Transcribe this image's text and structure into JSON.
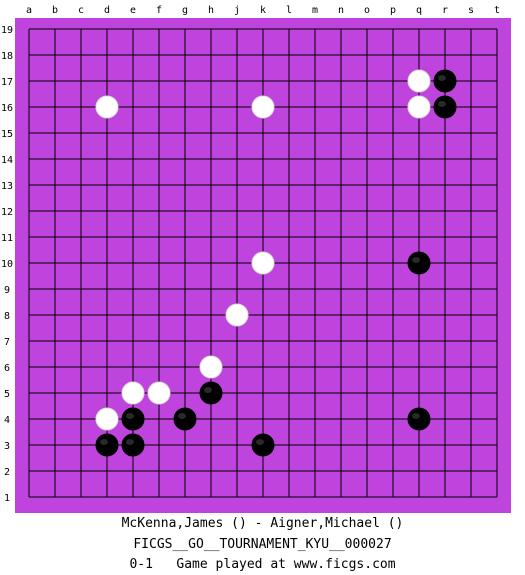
{
  "board": {
    "size": 19,
    "columns": [
      "a",
      "b",
      "c",
      "d",
      "e",
      "f",
      "g",
      "h",
      "j",
      "k",
      "l",
      "m",
      "n",
      "o",
      "p",
      "q",
      "r",
      "s",
      "t"
    ],
    "board_color": "#bf44dd",
    "stones": [
      {
        "color": "white",
        "point": "q17"
      },
      {
        "color": "black",
        "point": "r17"
      },
      {
        "color": "white",
        "point": "d16"
      },
      {
        "color": "white",
        "point": "k16"
      },
      {
        "color": "white",
        "point": "q16"
      },
      {
        "color": "black",
        "point": "r16"
      },
      {
        "color": "white",
        "point": "k10"
      },
      {
        "color": "black",
        "point": "q10"
      },
      {
        "color": "white",
        "point": "j8"
      },
      {
        "color": "white",
        "point": "h6"
      },
      {
        "color": "white",
        "point": "e5"
      },
      {
        "color": "white",
        "point": "f5"
      },
      {
        "color": "black",
        "point": "h5"
      },
      {
        "color": "white",
        "point": "d4"
      },
      {
        "color": "black",
        "point": "e4"
      },
      {
        "color": "black",
        "point": "g4"
      },
      {
        "color": "black",
        "point": "q4"
      },
      {
        "color": "black",
        "point": "d3"
      },
      {
        "color": "black",
        "point": "e3"
      },
      {
        "color": "black",
        "point": "k3"
      }
    ]
  },
  "game": {
    "players": "McKenna,James () - Aigner,Michael ()",
    "event": "FICGS__GO__TOURNAMENT_KYU__000027",
    "result": "0-1",
    "site_text": "Game played at www.ficgs.com"
  }
}
